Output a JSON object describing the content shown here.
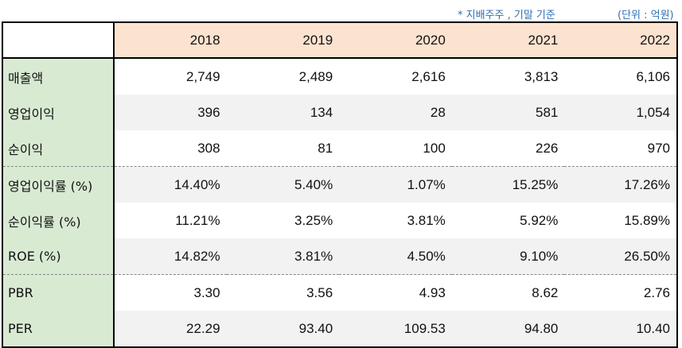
{
  "notes": {
    "basis": "* 지배주주 , 기말 기준",
    "unit": "(단위 : 억원)"
  },
  "table": {
    "years": [
      "2018",
      "2019",
      "2020",
      "2021",
      "2022"
    ],
    "rows": [
      {
        "label": "매출액",
        "values": [
          "2,749",
          "2,489",
          "2,616",
          "3,813",
          "6,106"
        ]
      },
      {
        "label": "영업이익",
        "values": [
          "396",
          "134",
          "28",
          "581",
          "1,054"
        ]
      },
      {
        "label": "순이익",
        "values": [
          "308",
          "81",
          "100",
          "226",
          "970"
        ]
      },
      {
        "label": "영업이익률 (%)",
        "values": [
          "14.40%",
          "5.40%",
          "1.07%",
          "15.25%",
          "17.26%"
        ]
      },
      {
        "label": "순이익률 (%)",
        "values": [
          "11.21%",
          "3.25%",
          "3.81%",
          "5.92%",
          "15.89%"
        ]
      },
      {
        "label": "ROE (%)",
        "values": [
          "14.82%",
          "3.81%",
          "4.50%",
          "9.10%",
          "26.50%"
        ]
      },
      {
        "label": "PBR",
        "values": [
          "3.30",
          "3.56",
          "4.93",
          "8.62",
          "2.76"
        ]
      },
      {
        "label": "PER",
        "values": [
          "22.29",
          "93.40",
          "109.53",
          "94.80",
          "10.40"
        ]
      }
    ]
  },
  "colors": {
    "header_bg": "#fbe3cf",
    "label_bg": "#d9ead3",
    "alt_row_bg": "#f2f2f2",
    "note_text": "#2f6fb3"
  }
}
